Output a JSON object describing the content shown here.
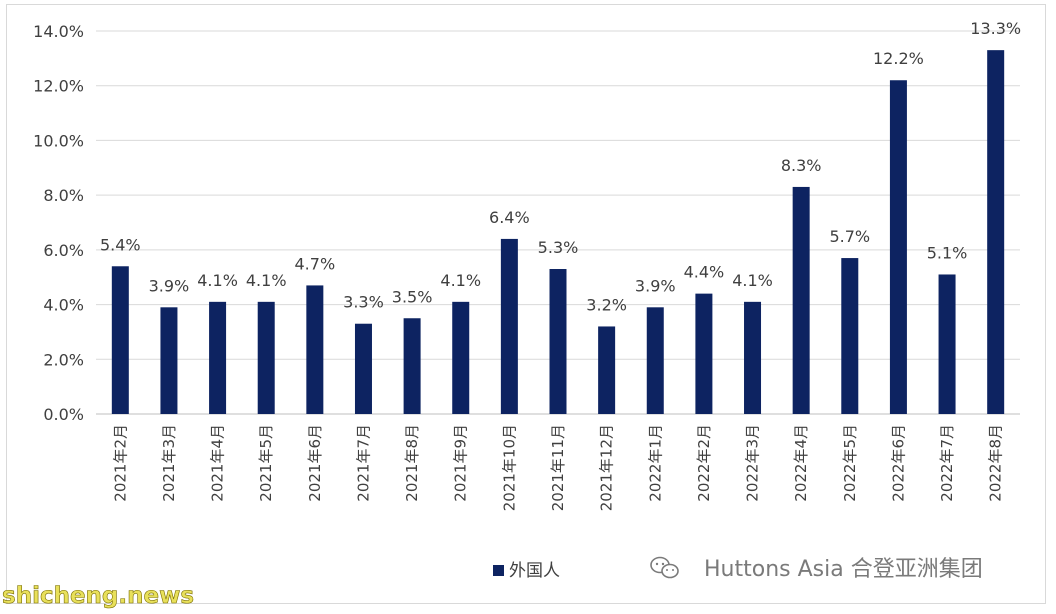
{
  "chart_data": {
    "type": "bar",
    "categories": [
      "2021年2月",
      "2021年3月",
      "2021年4月",
      "2021年5月",
      "2021年6月",
      "2021年7月",
      "2021年8月",
      "2021年9月",
      "2021年10月",
      "2021年11月",
      "2021年12月",
      "2022年1月",
      "2022年2月",
      "2022年3月",
      "2022年4月",
      "2022年5月",
      "2022年6月",
      "2022年7月",
      "2022年8月"
    ],
    "series": [
      {
        "name": "外国人",
        "values": [
          5.4,
          3.9,
          4.1,
          4.1,
          4.7,
          3.3,
          3.5,
          4.1,
          6.4,
          5.3,
          3.2,
          3.9,
          4.4,
          4.1,
          8.3,
          5.7,
          12.2,
          5.1,
          13.3
        ]
      }
    ],
    "data_labels": [
      "5.4%",
      "3.9%",
      "4.1%",
      "4.1%",
      "4.7%",
      "3.3%",
      "3.5%",
      "4.1%",
      "6.4%",
      "5.3%",
      "3.2%",
      "3.9%",
      "4.4%",
      "4.1%",
      "8.3%",
      "5.7%",
      "12.2%",
      "5.1%",
      "13.3%"
    ],
    "y_ticks": [
      "0.0%",
      "2.0%",
      "4.0%",
      "6.0%",
      "8.0%",
      "10.0%",
      "12.0%",
      "14.0%"
    ],
    "ylim": [
      0,
      14
    ],
    "grid": true,
    "legend": "bottom-center",
    "bar_color": "#0d2361"
  },
  "watermarks": {
    "right": "Huttons Asia 合登亚洲集团",
    "left": "shicheng.news"
  },
  "colors": {
    "grid": "#d9d9d9",
    "axis": "#bfbfbf"
  }
}
